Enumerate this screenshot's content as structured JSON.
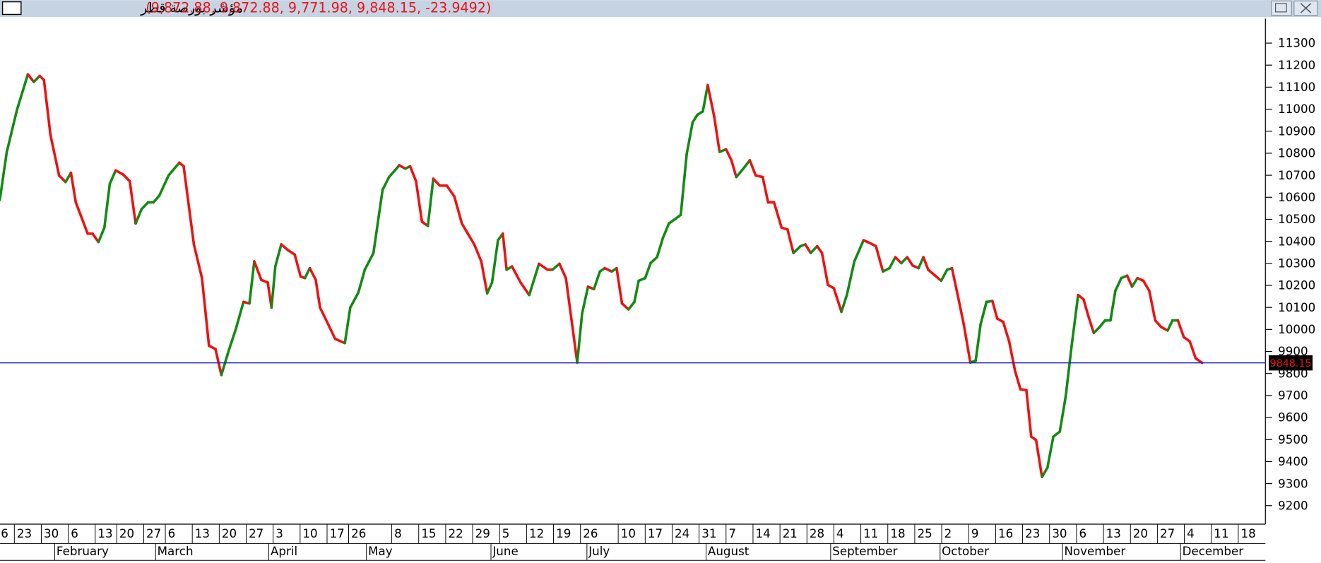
{
  "chart_data": {
    "type": "line",
    "title": "مؤشر بورصة قطر",
    "ohlc_label": "(9,872.88, 9,872.88, 9,771.98, 9,848.15, -23.9492)",
    "up_color": "#138a13",
    "down_color": "#ee1111",
    "reference_color": "#1f1fbf",
    "last_price": {
      "value": 9848.15,
      "label": "9848.15"
    },
    "xlim": [
      -2.66,
      231.72
    ],
    "ylim": [
      9116,
      11411
    ],
    "yticks": [
      9200,
      9300,
      9400,
      9500,
      9600,
      9700,
      9800,
      9900,
      10000,
      10100,
      10200,
      10300,
      10400,
      10500,
      10600,
      10700,
      10800,
      10900,
      11000,
      11100,
      11200,
      11300
    ],
    "xticks": [
      {
        "value": -5,
        "label": "6"
      },
      {
        "value": 0,
        "label": "23"
      },
      {
        "value": 5,
        "label": "30"
      },
      {
        "value": 10,
        "label": "6"
      },
      {
        "value": 15,
        "label": "13"
      },
      {
        "value": 19,
        "label": "20"
      },
      {
        "value": 24,
        "label": "27"
      },
      {
        "value": 28,
        "label": "6"
      },
      {
        "value": 33,
        "label": "13"
      },
      {
        "value": 38,
        "label": "20"
      },
      {
        "value": 43,
        "label": "27"
      },
      {
        "value": 48,
        "label": "3"
      },
      {
        "value": 53,
        "label": "10"
      },
      {
        "value": 58,
        "label": "17"
      },
      {
        "value": 62,
        "label": "26"
      },
      {
        "value": 70,
        "label": "8"
      },
      {
        "value": 75,
        "label": "15"
      },
      {
        "value": 80,
        "label": "22"
      },
      {
        "value": 85,
        "label": "29"
      },
      {
        "value": 90,
        "label": "5"
      },
      {
        "value": 95,
        "label": "12"
      },
      {
        "value": 100,
        "label": "19"
      },
      {
        "value": 105,
        "label": "26"
      },
      {
        "value": 112,
        "label": "10"
      },
      {
        "value": 117,
        "label": "17"
      },
      {
        "value": 122,
        "label": "24"
      },
      {
        "value": 127,
        "label": "31"
      },
      {
        "value": 132,
        "label": "7"
      },
      {
        "value": 137,
        "label": "14"
      },
      {
        "value": 142,
        "label": "21"
      },
      {
        "value": 147,
        "label": "28"
      },
      {
        "value": 152,
        "label": "4"
      },
      {
        "value": 157,
        "label": "11"
      },
      {
        "value": 162,
        "label": "18"
      },
      {
        "value": 167,
        "label": "25"
      },
      {
        "value": 172,
        "label": "2"
      },
      {
        "value": 177,
        "label": "9"
      },
      {
        "value": 182,
        "label": "16"
      },
      {
        "value": 187,
        "label": "23"
      },
      {
        "value": 192,
        "label": "30"
      },
      {
        "value": 197,
        "label": "6"
      },
      {
        "value": 202,
        "label": "13"
      },
      {
        "value": 207,
        "label": "20"
      },
      {
        "value": 212,
        "label": "27"
      },
      {
        "value": 217,
        "label": "4"
      },
      {
        "value": 222,
        "label": "11"
      },
      {
        "value": 227,
        "label": "18"
      }
    ],
    "month_ticks": [
      {
        "value": 7.5,
        "label": "February"
      },
      {
        "value": 26.2,
        "label": "March"
      },
      {
        "value": 47.2,
        "label": "April"
      },
      {
        "value": 65.3,
        "label": "May"
      },
      {
        "value": 88.4,
        "label": "June"
      },
      {
        "value": 106.2,
        "label": "July"
      },
      {
        "value": 128.3,
        "label": "August"
      },
      {
        "value": 151.4,
        "label": "September"
      },
      {
        "value": 171.7,
        "label": "October"
      },
      {
        "value": 194.4,
        "label": "November"
      },
      {
        "value": 216.3,
        "label": "December"
      }
    ],
    "x": [
      -2.7,
      -1.4,
      0.5,
      2.5,
      3.6,
      4.7,
      5.5,
      6.7,
      8.3,
      9.5,
      10.5,
      11.4,
      13.6,
      14.5,
      15.6,
      16.7,
      17.7,
      18.8,
      20.2,
      21.4,
      22.5,
      23.6,
      24.8,
      25.8,
      26.9,
      28.6,
      30.6,
      31.4,
      33.3,
      34.8,
      36.1,
      37.3,
      38.4,
      39.8,
      41.1,
      42.5,
      43.6,
      44.5,
      45.8,
      47.0,
      47.7,
      48.4,
      49.5,
      50.8,
      52.0,
      53.1,
      53.9,
      54.8,
      55.9,
      56.7,
      58.0,
      59.5,
      61.3,
      62.3,
      63.8,
      65.0,
      66.6,
      68.3,
      69.5,
      71.4,
      72.5,
      73.4,
      74.5,
      75.6,
      76.7,
      77.7,
      78.9,
      80.2,
      81.6,
      83.0,
      84.2,
      85.3,
      86.6,
      87.7,
      88.6,
      89.7,
      90.6,
      91.3,
      92.3,
      93.9,
      95.5,
      97.3,
      98.9,
      99.8,
      101.1,
      102.3,
      104.4,
      105.3,
      106.4,
      107.5,
      108.6,
      109.5,
      110.8,
      111.7,
      112.7,
      113.9,
      115.0,
      115.8,
      117.0,
      118.0,
      119.2,
      120.3,
      121.4,
      122.5,
      123.6,
      124.7,
      125.8,
      126.7,
      127.7,
      128.6,
      129.8,
      130.8,
      132.0,
      133.0,
      133.9,
      135.2,
      136.4,
      137.5,
      138.8,
      139.8,
      140.9,
      142.3,
      143.4,
      144.5,
      145.8,
      146.7,
      147.7,
      148.9,
      149.8,
      150.9,
      152.0,
      153.4,
      154.4,
      155.8,
      157.5,
      158.6,
      159.8,
      161.1,
      162.3,
      163.4,
      164.5,
      165.6,
      166.6,
      167.7,
      168.6,
      169.5,
      170.8,
      171.9,
      173.0,
      173.9,
      174.8,
      176.1,
      177.3,
      178.3,
      179.2,
      180.3,
      181.4,
      182.3,
      183.4,
      184.5,
      185.6,
      186.6,
      187.7,
      188.6,
      189.5,
      190.6,
      191.6,
      192.7,
      193.9,
      195.0,
      196.1,
      197.3,
      198.3,
      199.2,
      200.2,
      201.3,
      202.3,
      203.3,
      204.2,
      205.3,
      206.4,
      207.3,
      208.3,
      209.4,
      210.5,
      211.6,
      212.7,
      213.9,
      214.8,
      215.8,
      216.9,
      218.0,
      219.1,
      220.3
    ],
    "values": [
      10588,
      10806,
      10998,
      11158,
      11124,
      11151,
      11132,
      10883,
      10699,
      10669,
      10711,
      10577,
      10435,
      10435,
      10397,
      10462,
      10661,
      10722,
      10703,
      10673,
      10481,
      10546,
      10577,
      10577,
      10608,
      10699,
      10757,
      10741,
      10386,
      10233,
      9926,
      9911,
      9793,
      9907,
      10003,
      10125,
      10118,
      10309,
      10225,
      10213,
      10099,
      10286,
      10386,
      10359,
      10340,
      10240,
      10233,
      10278,
      10225,
      10099,
      10034,
      9957,
      9938,
      10099,
      10167,
      10271,
      10347,
      10634,
      10692,
      10745,
      10730,
      10741,
      10673,
      10489,
      10470,
      10684,
      10653,
      10653,
      10604,
      10481,
      10431,
      10386,
      10309,
      10164,
      10213,
      10405,
      10435,
      10271,
      10286,
      10213,
      10156,
      10298,
      10271,
      10271,
      10298,
      10233,
      9850,
      10072,
      10194,
      10183,
      10263,
      10278,
      10263,
      10278,
      10118,
      10091,
      10125,
      10221,
      10233,
      10301,
      10328,
      10416,
      10481,
      10500,
      10520,
      10795,
      10940,
      10975,
      10990,
      11109,
      10967,
      10806,
      10818,
      10768,
      10692,
      10730,
      10768,
      10699,
      10692,
      10577,
      10577,
      10462,
      10454,
      10347,
      10378,
      10386,
      10347,
      10378,
      10347,
      10202,
      10187,
      10080,
      10156,
      10309,
      10405,
      10393,
      10378,
      10263,
      10278,
      10328,
      10301,
      10328,
      10290,
      10278,
      10328,
      10271,
      10244,
      10221,
      10271,
      10278,
      10175,
      10022,
      9850,
      9858,
      10022,
      10125,
      10129,
      10049,
      10034,
      9946,
      9812,
      9728,
      9724,
      9513,
      9498,
      9330,
      9372,
      9513,
      9536,
      9697,
      9926,
      10156,
      10137,
      10060,
      9984,
      10011,
      10041,
      10041,
      10175,
      10233,
      10244,
      10194,
      10233,
      10221,
      10175,
      10041,
      10011,
      9995,
      10041,
      10041,
      9965,
      9946,
      9869,
      9848.15
    ]
  }
}
